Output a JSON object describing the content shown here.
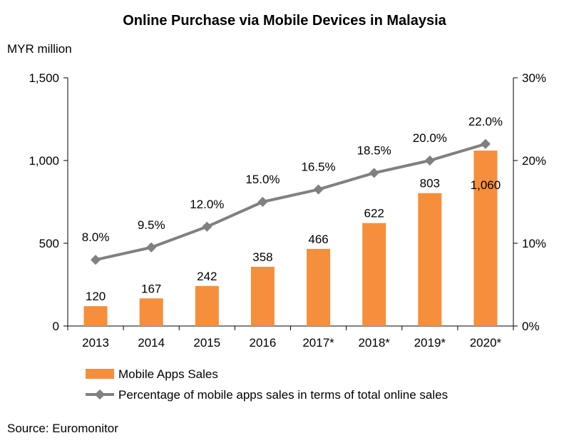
{
  "chart_data": {
    "type": "bar+line",
    "title": "Online Purchase via Mobile Devices in Malaysia",
    "ylabel": "MYR million",
    "categories": [
      "2013",
      "2014",
      "2015",
      "2016",
      "2017*",
      "2018*",
      "2019*",
      "2020*"
    ],
    "ylim": [
      0,
      1500
    ],
    "y_ticks": [
      "0",
      "500",
      "1,000",
      "1,500"
    ],
    "y_tick_values": [
      0,
      500,
      1000,
      1500
    ],
    "y2lim": [
      0,
      30
    ],
    "y2_ticks": [
      "0%",
      "10%",
      "20%",
      "30%"
    ],
    "y2_tick_values": [
      0,
      10,
      20,
      30
    ],
    "series": [
      {
        "name": "Mobile Apps Sales",
        "type": "bar",
        "axis": "left",
        "color": "#f58f3b",
        "values": [
          120,
          167,
          242,
          358,
          466,
          622,
          803,
          1060
        ],
        "labels": [
          "120",
          "167",
          "242",
          "358",
          "466",
          "622",
          "803",
          "1,060"
        ]
      },
      {
        "name": "Percentage of mobile apps sales in terms of total online sales",
        "type": "line",
        "axis": "right",
        "color": "#808080",
        "values": [
          8.0,
          9.5,
          12.0,
          15.0,
          16.5,
          18.5,
          20.0,
          22.0
        ],
        "labels": [
          "8.0%",
          "9.5%",
          "12.0%",
          "15.0%",
          "16.5%",
          "18.5%",
          "20.0%",
          "22.0%"
        ]
      }
    ],
    "source": "Source: Euromonitor"
  }
}
